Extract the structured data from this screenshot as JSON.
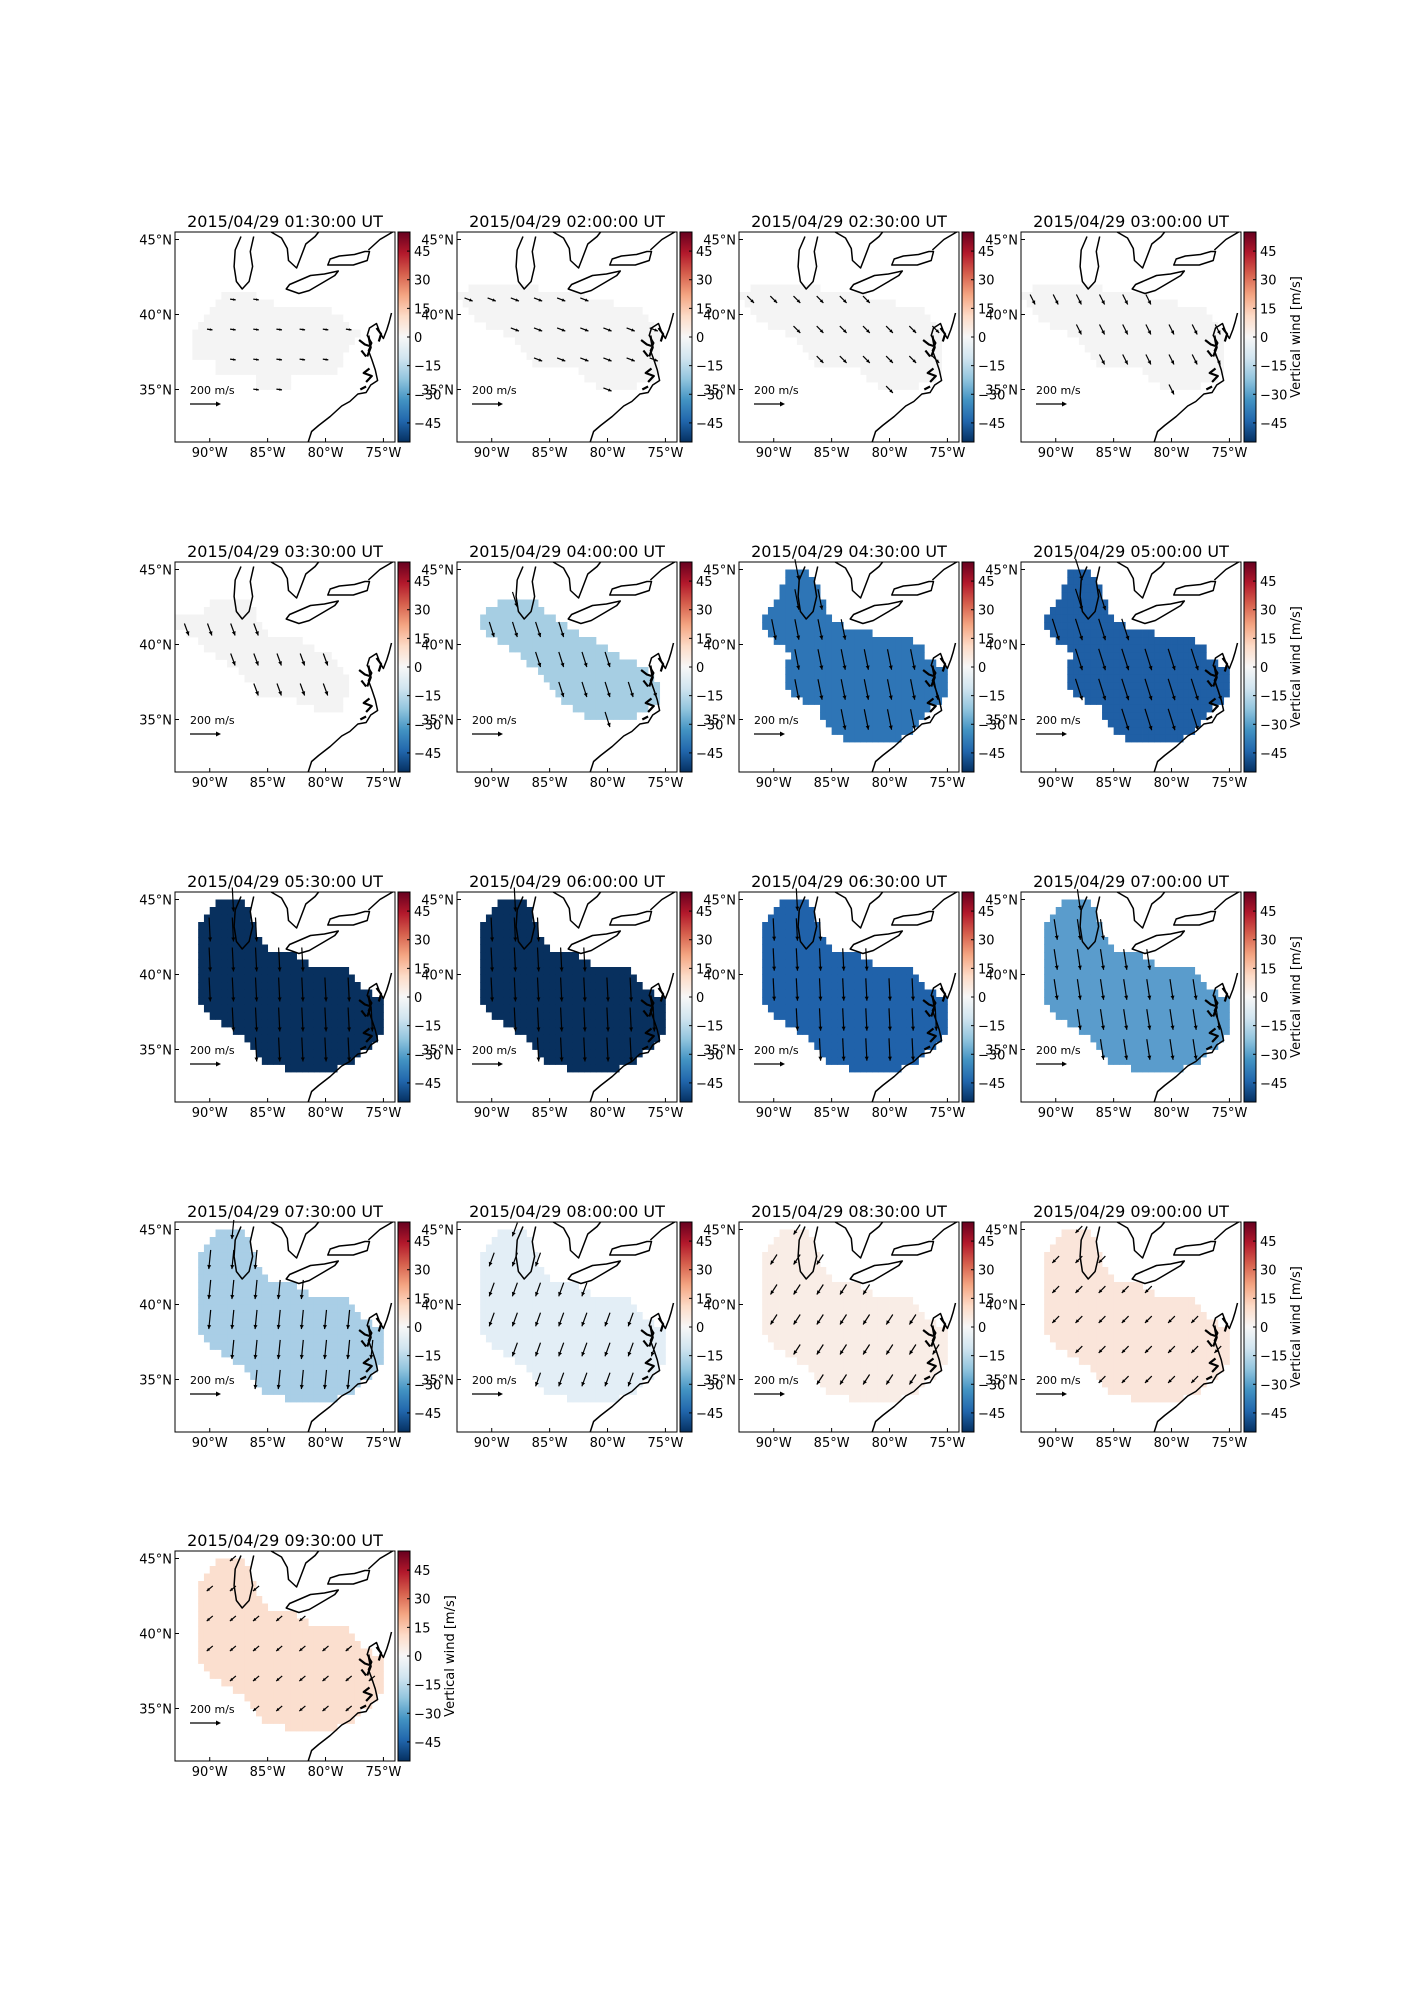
{
  "figure": {
    "colorbar_label": "Vertical wind [m/s]",
    "colorbar_ticks": [
      "45",
      "30",
      "15",
      "0",
      "−15",
      "−30",
      "−45"
    ],
    "colorbar_tick_values": [
      45,
      30,
      15,
      0,
      -15,
      -30,
      -45
    ],
    "colorbar_range": [
      -55,
      55
    ],
    "lat_labels": [
      "45°N",
      "40°N",
      "35°N"
    ],
    "lat_values": [
      45,
      40,
      35
    ],
    "lon_labels": [
      "90°W",
      "85°W",
      "80°W",
      "75°W"
    ],
    "lon_values": [
      -90,
      -85,
      -80,
      -75
    ],
    "lon_range": [
      -93,
      -74
    ],
    "lat_range": [
      31.5,
      45.5
    ],
    "reference_arrow_label": "200 m/s",
    "reference_arrow_value": 200,
    "colormap": [
      "#053061",
      "#2166ac",
      "#4393c3",
      "#92c5de",
      "#d1e5f0",
      "#f7f7f7",
      "#fddbc7",
      "#f4a582",
      "#d6604d",
      "#b2182b",
      "#67001f"
    ]
  },
  "panels": [
    {
      "title": "2015/04/29 01:30:00 UT",
      "fill": "#f4f4f4",
      "vertical_wind": 0,
      "shape": "small",
      "wind_dir": [
        1.0,
        -0.15
      ],
      "wind_len": 0.35,
      "show_colorbar_label": false,
      "lat_overlap": true
    },
    {
      "title": "2015/04/29 02:00:00 UT",
      "fill": "#f4f4f4",
      "vertical_wind": 0,
      "shape": "medium",
      "wind_dir": [
        0.9,
        -0.35
      ],
      "wind_len": 0.55,
      "show_colorbar_label": false,
      "lat_overlap": true
    },
    {
      "title": "2015/04/29 02:30:00 UT",
      "fill": "#f4f4f4",
      "vertical_wind": 0,
      "shape": "medium",
      "wind_dir": [
        0.7,
        -0.7
      ],
      "wind_len": 0.6,
      "show_colorbar_label": false,
      "lat_overlap": true
    },
    {
      "title": "2015/04/29 03:00:00 UT",
      "fill": "#f4f4f4",
      "vertical_wind": 0,
      "shape": "medium",
      "wind_dir": [
        0.45,
        -0.9
      ],
      "wind_len": 0.7,
      "show_colorbar_label": true,
      "lat_overlap": false
    },
    {
      "title": "2015/04/29 03:30:00 UT",
      "fill": "#f3f3f3",
      "vertical_wind": -2,
      "shape": "west",
      "wind_dir": [
        0.35,
        -0.95
      ],
      "wind_len": 0.8,
      "show_colorbar_label": false,
      "lat_overlap": true
    },
    {
      "title": "2015/04/29 04:00:00 UT",
      "fill": "#a6cee3",
      "vertical_wind": -20,
      "shape": "band",
      "wind_dir": [
        0.3,
        -0.95
      ],
      "wind_len": 1.0,
      "show_colorbar_label": false,
      "lat_overlap": true
    },
    {
      "title": "2015/04/29 04:30:00 UT",
      "fill": "#2e75b6",
      "vertical_wind": -38,
      "shape": "large",
      "wind_dir": [
        0.2,
        -1.0
      ],
      "wind_len": 1.3,
      "show_colorbar_label": false,
      "lat_overlap": true
    },
    {
      "title": "2015/04/29 05:00:00 UT",
      "fill": "#1f5fa5",
      "vertical_wind": -42,
      "shape": "large",
      "wind_dir": [
        0.3,
        -0.95
      ],
      "wind_len": 1.4,
      "show_colorbar_label": true,
      "lat_overlap": false
    },
    {
      "title": "2015/04/29 05:30:00 UT",
      "fill": "#08305e",
      "vertical_wind": -55,
      "shape": "full",
      "wind_dir": [
        0.05,
        -1.0
      ],
      "wind_len": 1.5,
      "show_colorbar_label": false,
      "lat_overlap": true
    },
    {
      "title": "2015/04/29 06:00:00 UT",
      "fill": "#08305e",
      "vertical_wind": -55,
      "shape": "full",
      "wind_dir": [
        0.05,
        -1.0
      ],
      "wind_len": 1.5,
      "show_colorbar_label": false,
      "lat_overlap": true
    },
    {
      "title": "2015/04/29 06:30:00 UT",
      "fill": "#2062aa",
      "vertical_wind": -40,
      "shape": "full",
      "wind_dir": [
        0.05,
        -1.0
      ],
      "wind_len": 1.4,
      "show_colorbar_label": false,
      "lat_overlap": true
    },
    {
      "title": "2015/04/29 07:00:00 UT",
      "fill": "#5a9ccc",
      "vertical_wind": -28,
      "shape": "full",
      "wind_dir": [
        0.15,
        -1.0
      ],
      "wind_len": 1.3,
      "show_colorbar_label": true,
      "lat_overlap": false
    },
    {
      "title": "2015/04/29 07:30:00 UT",
      "fill": "#a9cee6",
      "vertical_wind": -17,
      "shape": "full",
      "wind_dir": [
        -0.1,
        -1.0
      ],
      "wind_len": 1.2,
      "show_colorbar_label": false,
      "lat_overlap": true
    },
    {
      "title": "2015/04/29 08:00:00 UT",
      "fill": "#e3eef6",
      "vertical_wind": -5,
      "shape": "full",
      "wind_dir": [
        -0.35,
        -0.95
      ],
      "wind_len": 0.9,
      "show_colorbar_label": false,
      "lat_overlap": true
    },
    {
      "title": "2015/04/29 08:30:00 UT",
      "fill": "#f9ede6",
      "vertical_wind": 3,
      "shape": "full",
      "wind_dir": [
        -0.55,
        -0.85
      ],
      "wind_len": 0.75,
      "show_colorbar_label": false,
      "lat_overlap": true
    },
    {
      "title": "2015/04/29 09:00:00 UT",
      "fill": "#fae5da",
      "vertical_wind": 5,
      "shape": "full",
      "wind_dir": [
        -0.7,
        -0.7
      ],
      "wind_len": 0.6,
      "show_colorbar_label": true,
      "lat_overlap": false
    },
    {
      "title": "2015/04/29 09:30:00 UT",
      "fill": "#fbdfcf",
      "vertical_wind": 7,
      "shape": "full",
      "wind_dir": [
        -0.75,
        -0.65
      ],
      "wind_len": 0.5,
      "show_colorbar_label": true,
      "lat_overlap": false
    }
  ]
}
